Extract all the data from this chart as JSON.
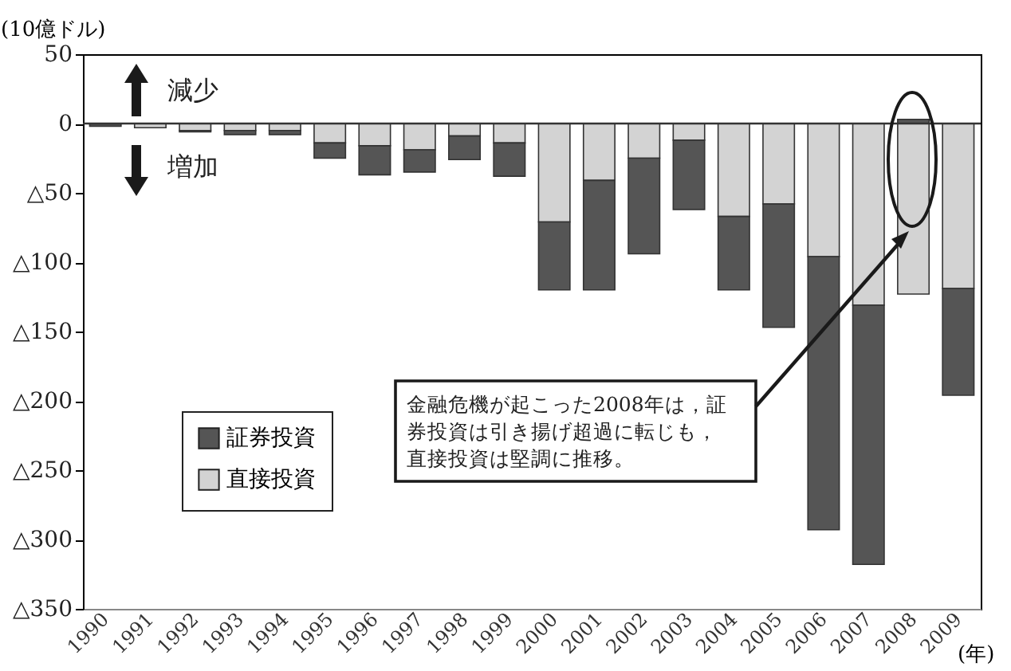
{
  "chart_data": {
    "type": "bar",
    "stacked": true,
    "ylabel": "(10億ドル)",
    "xlabel": "(年)",
    "categories": [
      "1990",
      "1991",
      "1992",
      "1993",
      "1994",
      "1995",
      "1996",
      "1997",
      "1998",
      "1999",
      "2000",
      "2001",
      "2002",
      "2003",
      "2004",
      "2005",
      "2006",
      "2007",
      "2008",
      "2009"
    ],
    "series": [
      {
        "name": "直接投資",
        "color": "#d3d3d3",
        "values": [
          null,
          -3,
          -5,
          -5,
          -5,
          -14,
          -16,
          -19,
          -9,
          -14,
          -71,
          -41,
          -25,
          -12,
          -67,
          -58,
          -96,
          -131,
          -123,
          -119
        ]
      },
      {
        "name": "証券投資",
        "color": "#555555",
        "values": [
          -2,
          0,
          -1,
          -3,
          -3,
          -11,
          -21,
          -16,
          -17,
          -24,
          -49,
          -79,
          -69,
          -50,
          -53,
          -89,
          -197,
          -187,
          3,
          -77
        ]
      }
    ],
    "ylim": [
      -350,
      50
    ],
    "yticks": [
      50,
      0,
      {
        "value": -50,
        "label": "△50"
      },
      {
        "value": -100,
        "label": "△100"
      },
      {
        "value": -150,
        "label": "△150"
      },
      {
        "value": -200,
        "label": "△200"
      },
      {
        "value": -250,
        "label": "△250"
      },
      {
        "value": -300,
        "label": "△300"
      },
      {
        "value": -350,
        "label": "△350"
      }
    ],
    "ref_lines": [
      {
        "axis": "y",
        "value": 0
      }
    ],
    "legend": "bottom left",
    "annotations": [
      "減少",
      "増加",
      "金融危機が起こった2008年は，証券投資は引き揚げ超過に転じも，直接投資は堅調に推移。"
    ]
  }
}
